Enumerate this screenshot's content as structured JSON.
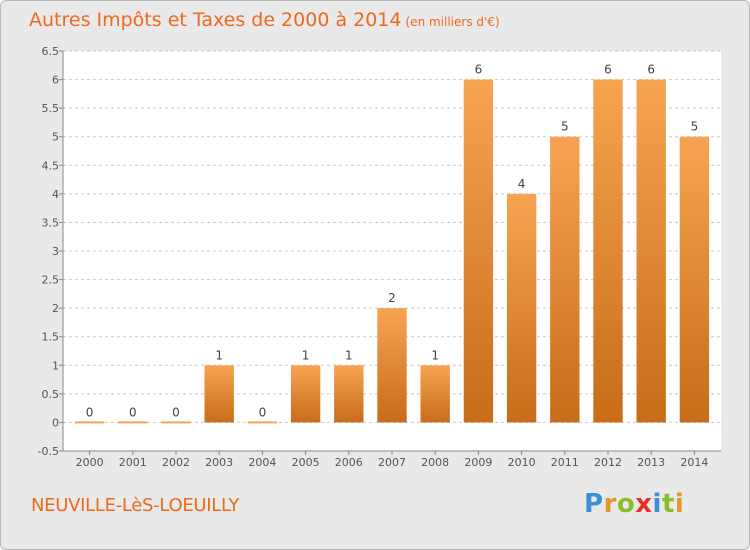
{
  "header": {
    "title": "Autres Impôts et Taxes de 2000 à 2014",
    "subtitle": "(en milliers d'€)"
  },
  "footer": {
    "commune": "NEUVILLE-LèS-LOEUILLY",
    "logo_letters": [
      "P",
      "r",
      "o",
      "x",
      "i",
      "t",
      "i"
    ]
  },
  "colors": {
    "title": "#ec6a1c",
    "bar_top": "#f7a452",
    "bar_bottom": "#c86c18",
    "plot_bg": "#ffffff",
    "page_bg": "#e9e9e9"
  },
  "chart_data": {
    "type": "bar",
    "title": "Autres Impôts et Taxes de 2000 à 2014",
    "subtitle": "(en milliers d'€)",
    "xlabel": "",
    "ylabel": "",
    "categories": [
      "2000",
      "2001",
      "2002",
      "2003",
      "2004",
      "2005",
      "2006",
      "2007",
      "2008",
      "2009",
      "2010",
      "2011",
      "2012",
      "2013",
      "2014"
    ],
    "values": [
      0,
      0,
      0,
      1,
      0,
      1,
      1,
      2,
      1,
      6,
      4,
      5,
      6,
      6,
      5
    ],
    "data_labels": [
      "0",
      "0",
      "0",
      "1",
      "0",
      "1",
      "1",
      "2",
      "1",
      "6",
      "4",
      "5",
      "6",
      "6",
      "5"
    ],
    "ylim": [
      -0.5,
      6.5
    ],
    "yticks": [
      "-0.5",
      "0",
      "0.5",
      "1",
      "1.5",
      "2",
      "2.5",
      "3",
      "3.5",
      "4",
      "4.5",
      "5",
      "5.5",
      "6",
      "6.5"
    ],
    "ytick_values": [
      -0.5,
      0,
      0.5,
      1,
      1.5,
      2,
      2.5,
      3,
      3.5,
      4,
      4.5,
      5,
      5.5,
      6,
      6.5
    ],
    "grid": "horizontal dashed",
    "legend": "none"
  }
}
